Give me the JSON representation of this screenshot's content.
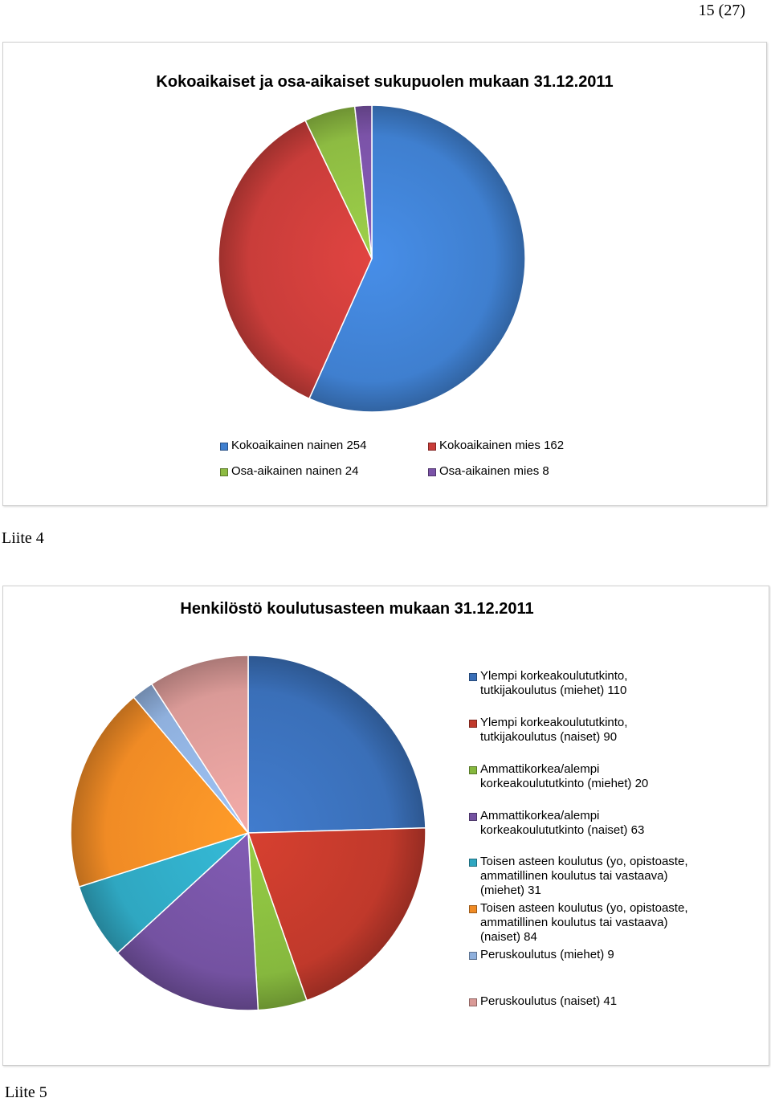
{
  "page": {
    "number": "15 (27)"
  },
  "captions": {
    "liite4": "Liite 4",
    "liite5": "Liite 5"
  },
  "chart_data": [
    {
      "type": "pie",
      "title": "Kokoaikaiset ja osa-aikaiset sukupuolen mukaan 31.12.2011",
      "categories": [
        "Kokoaikainen nainen",
        "Kokoaikainen mies",
        "Osa-aikainen nainen",
        "Osa-aikainen mies"
      ],
      "values": [
        254,
        162,
        24,
        8
      ],
      "legend_labels": [
        "Kokoaikainen nainen   254",
        "Kokoaikainen mies  162",
        "Osa-aikainen nainen  24",
        "Osa-aikainen mies  8"
      ],
      "colors": [
        "#3f7fcf",
        "#c93d3a",
        "#8dbb42",
        "#7b53a8"
      ],
      "legend": "bottom"
    },
    {
      "type": "pie",
      "title": "Henkilöstö koulutusasteen mukaan 31.12.2011",
      "categories": [
        "Ylempi korkeakoulututkinto, tutkijakoulutus (miehet)",
        "Ylempi korkeakoulututkinto, tutkijakoulutus (naiset)",
        "Ammattikorkea/alempi korkeakoulututkinto (miehet)",
        "Ammattikorkea/alempi korkeakoulututkinto (naiset)",
        "Toisen asteen koulutus (yo, opistoaste, ammatillinen koulutus tai vastaava) (miehet)",
        "Toisen asteen koulutus (yo, opistoaste, ammatillinen koulutus tai vastaava) (naiset)",
        "Peruskoulutus (miehet)",
        "Peruskoulutus (naiset)"
      ],
      "values": [
        110,
        90,
        20,
        63,
        31,
        84,
        9,
        41
      ],
      "legend_labels": [
        "Ylempi korkeakoulututkinto,\ntutkijakoulutus  (miehet)   110",
        "Ylempi korkeakoulututkinto,\ntutkijakoulutus  (naiset)   90",
        "Ammattikorkea/alempi\nkorkeakoulututkinto  (miehet)   20",
        "Ammattikorkea/alempi\nkorkeakoulututkinto  (naiset)  63",
        "Toisen asteen koulutus (yo, opistoaste,\nammatillinen koulutus tai vastaava)\n(miehet)  31",
        "Toisen asteen koulutus (yo, opistoaste,\nammatillinen koulutus tai vastaava)\n(naiset)   84",
        "Peruskoulutus  (miehet)   9",
        "Peruskoulutus  (naiset)   41"
      ],
      "colors": [
        "#3a6fb8",
        "#c0392b",
        "#86b83e",
        "#7452a1",
        "#2fa7c1",
        "#f08b25",
        "#8fb0dd",
        "#da9a97"
      ],
      "legend": "right"
    }
  ]
}
